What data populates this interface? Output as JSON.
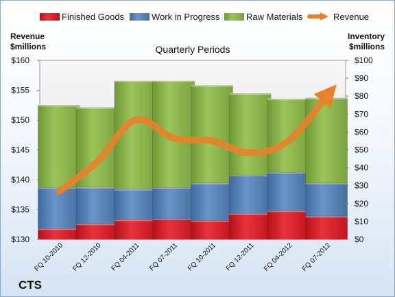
{
  "chart_data": {
    "type": "bar",
    "stacked": true,
    "title": "Quarterly Periods",
    "footer_label": "CTS",
    "categories": [
      "FQ 10-2010",
      "FQ 12-2010",
      "FQ 04-2011",
      "FQ 07-2011",
      "FQ 10-2011",
      "FQ 12-2011",
      "FQ 04-2012",
      "FQ 07-2012"
    ],
    "series": [
      {
        "name": "Finished Goods",
        "axis": "right",
        "color": "#e0202a",
        "values": [
          6,
          8.7,
          11,
          11.5,
          10.5,
          14.5,
          16,
          13
        ]
      },
      {
        "name": "Work in Progress",
        "axis": "right",
        "color": "#4f81bd",
        "values": [
          23,
          20.5,
          17,
          17.5,
          21,
          21.5,
          21.5,
          18.5
        ]
      },
      {
        "name": "Raw Materials",
        "axis": "right",
        "color": "#8bb44a",
        "values": [
          46,
          44.5,
          60.5,
          59.5,
          54.5,
          45.5,
          41,
          47.5
        ]
      }
    ],
    "line_series": {
      "name": "Revenue",
      "axis": "left",
      "color": "#e8822a",
      "values": [
        138,
        143,
        150,
        147,
        146.5,
        144.5,
        146.5,
        154
      ]
    },
    "left_axis": {
      "label_line1": "Revenue",
      "label_line2": "$millions",
      "min": 130,
      "max": 160,
      "step": 5,
      "tick_labels": [
        "$130",
        "$135",
        "$140",
        "$145",
        "$150",
        "$155",
        "$160"
      ]
    },
    "right_axis": {
      "label_line1": "Inventory",
      "label_line2": "$millions",
      "min": 0,
      "max": 100,
      "step": 10,
      "tick_labels": [
        "$0",
        "$10",
        "$20",
        "$30",
        "$40",
        "$50",
        "$60",
        "$70",
        "$80",
        "$90",
        "$100"
      ]
    },
    "legend_position": "top",
    "grid": false
  }
}
